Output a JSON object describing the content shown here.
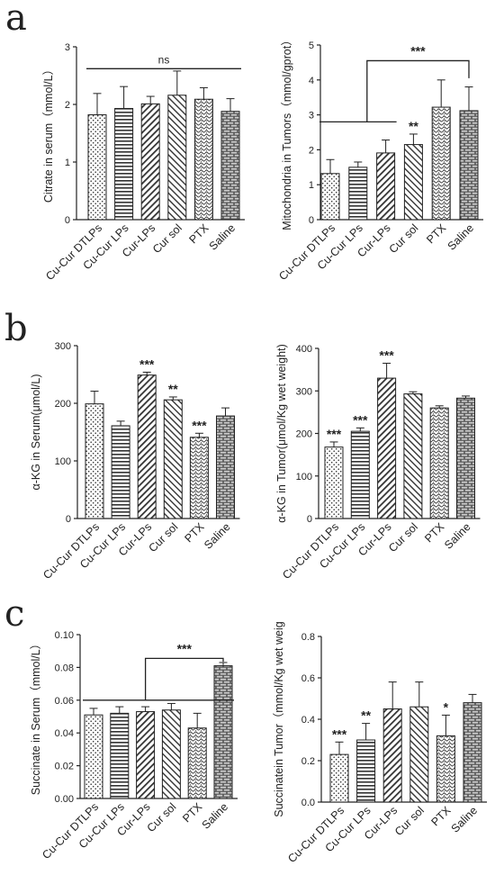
{
  "panel_letters": [
    "a",
    "b",
    "c"
  ],
  "categories": [
    "Cu-Cur DTLPs",
    "Cu-Cur LPs",
    "Cur-LPs",
    "Cur sol",
    "PTX",
    "Saline"
  ],
  "chart_data": [
    {
      "id": "a-left",
      "type": "bar",
      "categories": [
        "Cu-Cur DTLPs",
        "Cu-Cur LPs",
        "Cur-LPs",
        "Cur sol",
        "PTX",
        "Saline"
      ],
      "values": [
        1.82,
        1.93,
        2.01,
        2.16,
        2.09,
        1.88
      ],
      "errors": [
        0.37,
        0.38,
        0.13,
        0.42,
        0.2,
        0.22
      ],
      "ylabel": "Citrate in serum（mmol/L）",
      "ylim": [
        0,
        3
      ],
      "yticks": [
        0,
        1,
        2,
        3
      ],
      "ytick_labels": [
        "0",
        "1",
        "2",
        "3"
      ],
      "stars": [
        "",
        "",
        "",
        "",
        "",
        ""
      ],
      "comparisons": [
        {
          "type": "line",
          "from": 0,
          "to": 5,
          "y": 2.62,
          "label": "ns"
        }
      ]
    },
    {
      "id": "a-right",
      "type": "bar",
      "categories": [
        "Cu-Cur DTLPs",
        "Cu-Cur LPs",
        "Cur-LPs",
        "Cur sol",
        "PTX",
        "Saline"
      ],
      "values": [
        1.32,
        1.5,
        1.91,
        2.15,
        3.22,
        3.12
      ],
      "errors": [
        0.4,
        0.15,
        0.37,
        0.3,
        0.78,
        0.68
      ],
      "ylabel": "Mitochondria in Tumors（mmol/gprot）",
      "ylim": [
        0,
        5
      ],
      "yticks": [
        0,
        1,
        2,
        3,
        4,
        5
      ],
      "ytick_labels": [
        "0",
        "1",
        "2",
        "3",
        "4",
        "5"
      ],
      "stars": [
        "",
        "",
        "",
        "**",
        "",
        ""
      ],
      "comparisons": [
        {
          "type": "bracket",
          "from": 0,
          "to": 2,
          "target": 5,
          "y": 2.8,
          "top": 4.55,
          "target_end": 4.05,
          "label": "***"
        }
      ]
    },
    {
      "id": "b-left",
      "type": "bar",
      "categories": [
        "Cu-Cur DTLPs",
        "Cu-Cur LPs",
        "Cur-LPs",
        "Cur sol",
        "PTX",
        "Saline"
      ],
      "values": [
        199,
        161,
        249,
        206,
        141,
        178
      ],
      "errors": [
        22,
        8,
        5,
        5,
        7,
        14
      ],
      "ylabel": "α-KG in Serum(μmol/L)",
      "ylim": [
        0,
        300
      ],
      "yticks": [
        0,
        100,
        200,
        300
      ],
      "ytick_labels": [
        "0",
        "100",
        "200",
        "300"
      ],
      "stars": [
        "",
        "",
        "***",
        "**",
        "***",
        ""
      ],
      "comparisons": []
    },
    {
      "id": "b-right",
      "type": "bar",
      "categories": [
        "Cu-Cur DTLPs",
        "Cu-Cur LPs",
        "Cur-LPs",
        "Cur sol",
        "PTX",
        "Saline"
      ],
      "values": [
        168,
        205,
        330,
        293,
        260,
        283
      ],
      "errors": [
        12,
        8,
        35,
        5,
        5,
        5
      ],
      "ylabel": "α-KG in Tumor(μmol/Kg wet weight)",
      "ylim": [
        0,
        400
      ],
      "yticks": [
        0,
        100,
        200,
        300,
        400
      ],
      "ytick_labels": [
        "0",
        "100",
        "200",
        "300",
        "400"
      ],
      "stars": [
        "***",
        "***",
        "***",
        "",
        "",
        ""
      ],
      "comparisons": []
    },
    {
      "id": "c-left",
      "type": "bar",
      "categories": [
        "Cu-Cur DTLPs",
        "Cu-Cur LPs",
        "Cur-LPs",
        "Cur sol",
        "PTX",
        "Saline"
      ],
      "values": [
        0.051,
        0.052,
        0.053,
        0.054,
        0.043,
        0.081
      ],
      "errors": [
        0.004,
        0.004,
        0.003,
        0.004,
        0.009,
        0.002
      ],
      "ylabel": "Succinate in Serum（mmol/L）",
      "ylim": [
        0,
        0.1
      ],
      "yticks": [
        0,
        0.02,
        0.04,
        0.06,
        0.08,
        0.1
      ],
      "ytick_labels": [
        "0.00",
        "0.02",
        "0.04",
        "0.06",
        "0.08",
        "0.10"
      ],
      "stars": [
        "",
        "",
        "",
        "",
        "",
        ""
      ],
      "comparisons": [
        {
          "type": "line",
          "from": 0,
          "to": 5,
          "y": 0.06,
          "label": ""
        },
        {
          "type": "bracket",
          "from": 2,
          "to": 2,
          "target": 5,
          "y": 0.06,
          "top": 0.0855,
          "target_end": 0.0835,
          "label": "***"
        }
      ]
    },
    {
      "id": "c-right",
      "type": "bar",
      "categories": [
        "Cu-Cur DTLPs",
        "Cu-Cur LPs",
        "Cur-LPs",
        "Cur sol",
        "PTX",
        "Saline"
      ],
      "values": [
        0.23,
        0.3,
        0.45,
        0.46,
        0.32,
        0.48
      ],
      "errors": [
        0.06,
        0.08,
        0.13,
        0.12,
        0.1,
        0.04
      ],
      "ylabel": "Succinatein Tumor（mmol/Kg wet weig",
      "ylim": [
        0,
        0.8
      ],
      "yticks": [
        0,
        0.2,
        0.4,
        0.6,
        0.8
      ],
      "ytick_labels": [
        "0.0",
        "0.2",
        "0.4",
        "0.6",
        "0.8"
      ],
      "stars": [
        "***",
        "**",
        "",
        "",
        "*",
        ""
      ],
      "comparisons": []
    }
  ]
}
